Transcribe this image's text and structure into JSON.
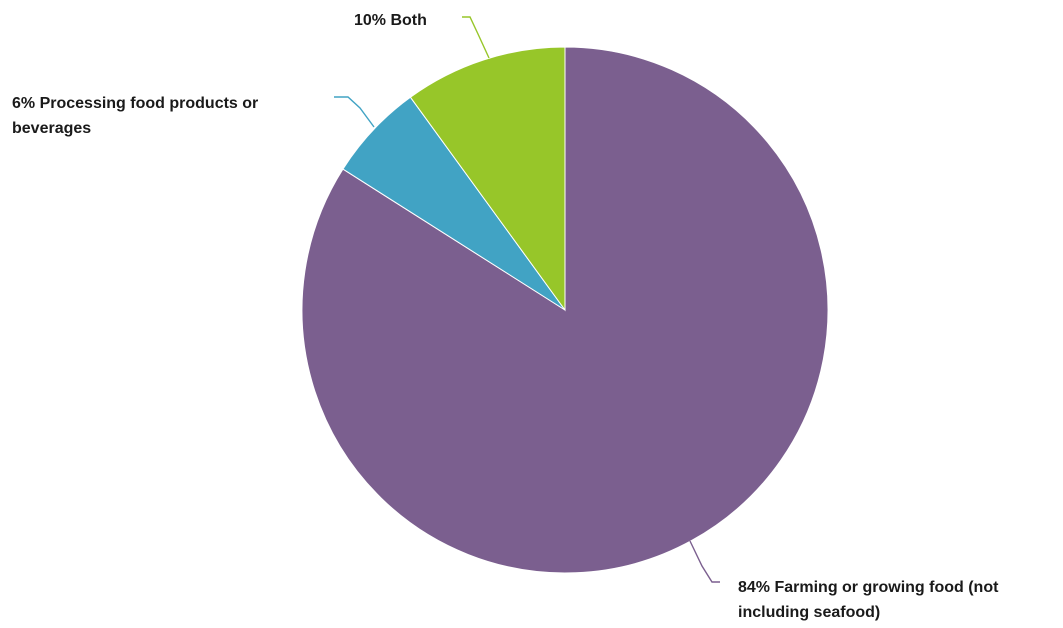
{
  "chart_data": {
    "type": "pie",
    "title": "",
    "slices": [
      {
        "name": "Farming or growing food (not including seafood)",
        "value": 84,
        "label_lines": [
          "84% Farming or growing food (not",
          "including seafood)"
        ],
        "color": "#7b5f8f"
      },
      {
        "name": "Processing food products or beverages",
        "value": 6,
        "label_lines": [
          "6% Processing food products or",
          "beverages"
        ],
        "color": "#41a3c4"
      },
      {
        "name": "Both",
        "value": 10,
        "label_lines": [
          "10% Both"
        ],
        "color": "#97c629"
      }
    ],
    "start_angle_deg": 0,
    "direction": "clockwise"
  }
}
